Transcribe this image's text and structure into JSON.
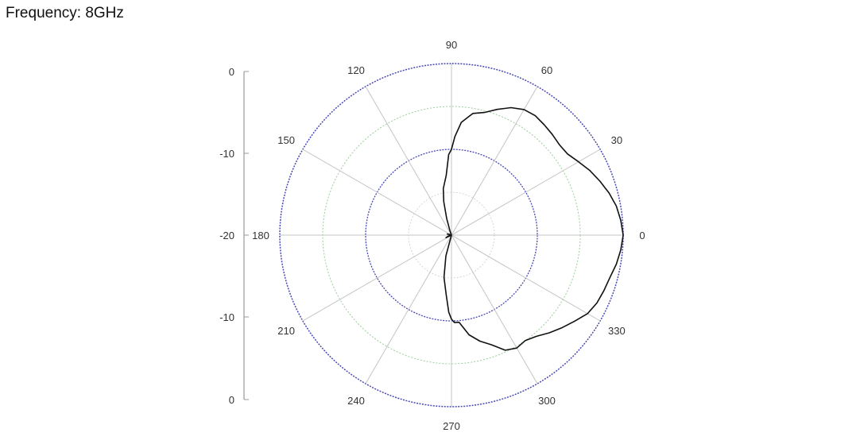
{
  "header": {
    "frequency_label": "Frequency: 8GHz"
  },
  "chart_data": {
    "type": "polar-line",
    "title": "",
    "angle_ticks": [
      "0",
      "30",
      "60",
      "90",
      "120",
      "150",
      "180",
      "210",
      "240",
      "270",
      "300",
      "330"
    ],
    "radial_scale_labels": [
      "0",
      "-10",
      "-20",
      "-10",
      "0"
    ],
    "r_range_db": [
      -20,
      0
    ],
    "grid_color": "#cccccc",
    "outer_ring_color": "#4848b8",
    "mid_ring_color": "#9fd49f",
    "series": [
      {
        "color": "#111111",
        "points": [
          [
            0,
            0.0
          ],
          [
            5,
            -0.2
          ],
          [
            10,
            -0.5
          ],
          [
            15,
            -1.0
          ],
          [
            20,
            -1.6
          ],
          [
            25,
            -2.2
          ],
          [
            30,
            -2.9
          ],
          [
            35,
            -3.5
          ],
          [
            40,
            -3.6
          ],
          [
            45,
            -3.4
          ],
          [
            50,
            -3.2
          ],
          [
            55,
            -3.0
          ],
          [
            60,
            -3.1
          ],
          [
            65,
            -3.6
          ],
          [
            70,
            -4.4
          ],
          [
            75,
            -5.2
          ],
          [
            80,
            -5.6
          ],
          [
            85,
            -6.8
          ],
          [
            88,
            -8.5
          ],
          [
            90,
            -10.0
          ],
          [
            92,
            -10.6
          ],
          [
            95,
            -13
          ],
          [
            100,
            -14.5
          ],
          [
            103,
            -16
          ],
          [
            106,
            -18
          ],
          [
            110,
            -19.5
          ],
          [
            120,
            -20
          ],
          [
            140,
            -20
          ],
          [
            160,
            -19.8
          ],
          [
            165,
            -19.5
          ],
          [
            170,
            -20
          ],
          [
            180,
            -20
          ],
          [
            190,
            -20
          ],
          [
            198,
            -19.6
          ],
          [
            205,
            -19.3
          ],
          [
            210,
            -20
          ],
          [
            230,
            -20
          ],
          [
            248,
            -20
          ],
          [
            255,
            -17.5
          ],
          [
            260,
            -15
          ],
          [
            265,
            -13
          ],
          [
            268,
            -11
          ],
          [
            270,
            -10.2
          ],
          [
            272,
            -9.8
          ],
          [
            275,
            -9.8
          ],
          [
            280,
            -8.2
          ],
          [
            285,
            -7.2
          ],
          [
            290,
            -6.4
          ],
          [
            295,
            -5.2
          ],
          [
            300,
            -4.8
          ],
          [
            305,
            -5.0
          ],
          [
            310,
            -4.6
          ],
          [
            315,
            -3.9
          ],
          [
            320,
            -3.2
          ],
          [
            325,
            -2.5
          ],
          [
            330,
            -1.7
          ],
          [
            335,
            -1.3
          ],
          [
            340,
            -1.1
          ],
          [
            345,
            -0.9
          ],
          [
            350,
            -0.5
          ],
          [
            355,
            -0.2
          ],
          [
            360,
            0.0
          ]
        ]
      }
    ]
  }
}
